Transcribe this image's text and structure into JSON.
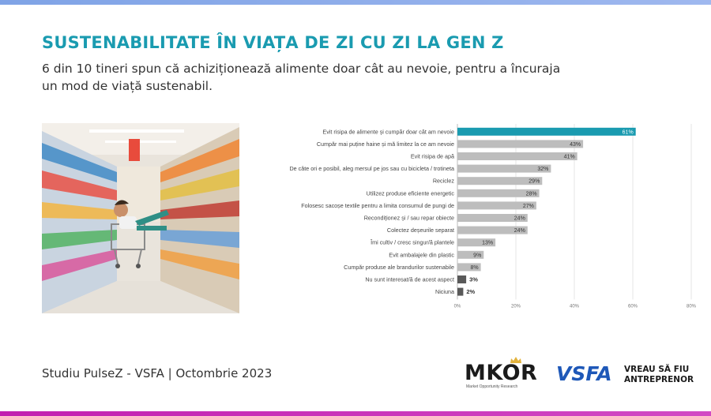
{
  "header": {
    "title": "SUSTENABILITATE ÎN VIAȚA DE ZI CU ZI LA GEN Z",
    "subtitle": "6 din 10 tineri spun că achiziționează alimente doar cât au nevoie, pentru a încuraja un mod de viață sustenabil."
  },
  "photo": {
    "icon": "supermarket-photo"
  },
  "chart_data": {
    "type": "bar",
    "orientation": "horizontal",
    "categories": [
      "Evit risipa de alimente și cumpăr doar cât am nevoie",
      "Cumpăr mai puține haine și mă limitez la ce am nevoie",
      "Evit risipa de apă",
      "De câte ori e posibil, aleg mersul pe jos sau cu bicicleta / trotineta",
      "Reciclez",
      "Utilizez produse eficiente energetic",
      "Folosesc sacoșe textile pentru a limita consumul de pungi de",
      "Recondiționez și / sau repar obiecte",
      "Colectez deșeurile separat",
      "Îmi cultiv / cresc singur/ă plantele",
      "Evit ambalajele din plastic",
      "Cumpăr produse ale brandurilor sustenabile",
      "Nu sunt interesat/ă de acest aspect",
      "Niciuna"
    ],
    "values": [
      61,
      43,
      41,
      32,
      29,
      28,
      27,
      24,
      24,
      13,
      9,
      8,
      3,
      2
    ],
    "value_labels": [
      "61%",
      "43%",
      "41%",
      "32%",
      "29%",
      "28%",
      "27%",
      "24%",
      "24%",
      "13%",
      "9%",
      "8%",
      "3%",
      "2%"
    ],
    "xlim": [
      0,
      80
    ],
    "x_ticks": [
      "0%",
      "20%",
      "40%",
      "60%",
      "80%"
    ],
    "tick_values": [
      0,
      20,
      40,
      60,
      80
    ],
    "colors": {
      "highlight": "#1a9bb0",
      "default": "#bdbdbd",
      "negative": "#595959"
    },
    "bar_color_keys": [
      "highlight",
      "default",
      "default",
      "default",
      "default",
      "default",
      "default",
      "default",
      "default",
      "default",
      "default",
      "default",
      "negative",
      "negative"
    ],
    "grid": true
  },
  "footer": {
    "source": "Studiu PulseZ - VSFA | Octombrie 2023",
    "mkor_logo": "MKOR",
    "mkor_tagline": "Market Opportunity Research",
    "vsfa_logo": "VSFA",
    "vsfa_tagline_line1": "VREAU SĂ FIU",
    "vsfa_tagline_line2": "ANTREPRENOR"
  }
}
